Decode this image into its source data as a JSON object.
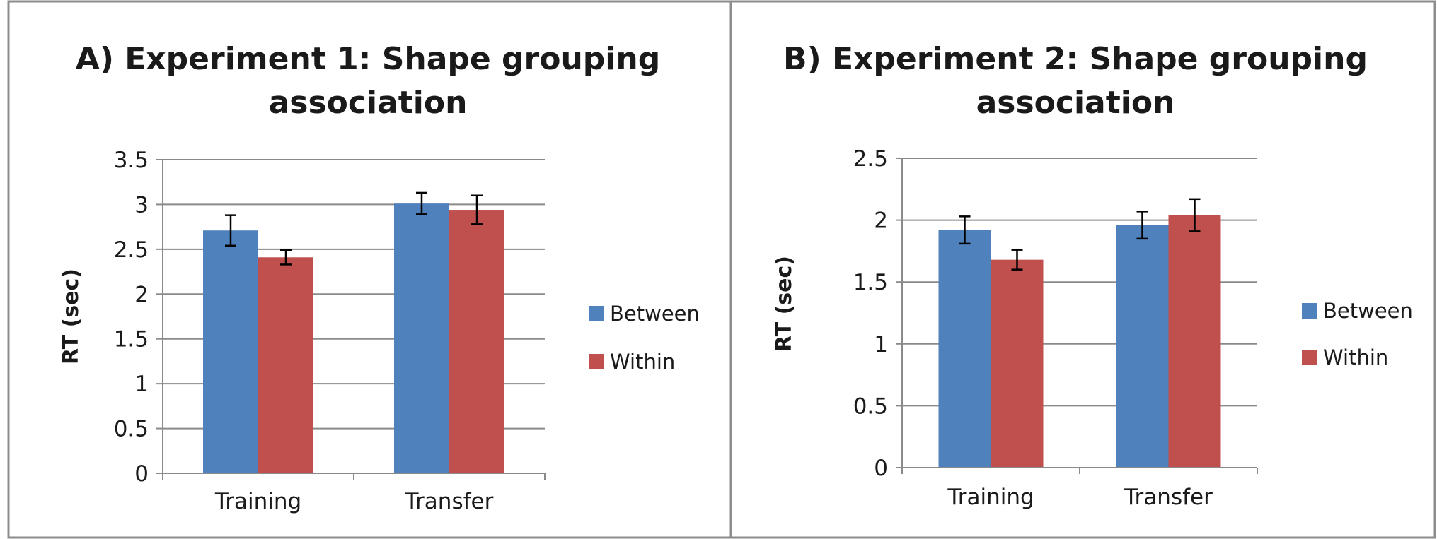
{
  "chart_data": [
    {
      "type": "bar",
      "title": "A) Experiment 1: Shape grouping association",
      "title_lines": [
        "A) Experiment 1: Shape grouping",
        "association"
      ],
      "ylabel": "RT (sec)",
      "xlabel": "",
      "categories": [
        "Training",
        "Transfer"
      ],
      "ylim": [
        0,
        3.5
      ],
      "yticks": [
        0,
        0.5,
        1,
        1.5,
        2,
        2.5,
        3,
        3.5
      ],
      "ytick_labels": [
        "0",
        "0.5",
        "1",
        "1.5",
        "2",
        "2.5",
        "3",
        "3.5"
      ],
      "grid": true,
      "legend_position": "right",
      "series": [
        {
          "name": "Between",
          "color": "#4f81bd",
          "values": [
            2.71,
            3.01
          ],
          "errors": [
            0.17,
            0.12
          ]
        },
        {
          "name": "Within",
          "color": "#c0504d",
          "values": [
            2.41,
            2.94
          ],
          "errors": [
            0.08,
            0.16
          ]
        }
      ]
    },
    {
      "type": "bar",
      "title": "B) Experiment 2: Shape grouping association",
      "title_lines": [
        "B) Experiment 2: Shape grouping",
        "association"
      ],
      "ylabel": "RT (sec)",
      "xlabel": "",
      "categories": [
        "Training",
        "Transfer"
      ],
      "ylim": [
        0,
        2.5
      ],
      "yticks": [
        0,
        0.5,
        1,
        1.5,
        2,
        2.5
      ],
      "ytick_labels": [
        "0",
        "0.5",
        "1",
        "1.5",
        "2",
        "2.5"
      ],
      "grid": true,
      "legend_position": "right",
      "series": [
        {
          "name": "Between",
          "color": "#4f81bd",
          "values": [
            1.92,
            1.96
          ],
          "errors": [
            0.11,
            0.11
          ]
        },
        {
          "name": "Within",
          "color": "#c0504d",
          "values": [
            1.68,
            2.04
          ],
          "errors": [
            0.08,
            0.13
          ]
        }
      ]
    }
  ]
}
